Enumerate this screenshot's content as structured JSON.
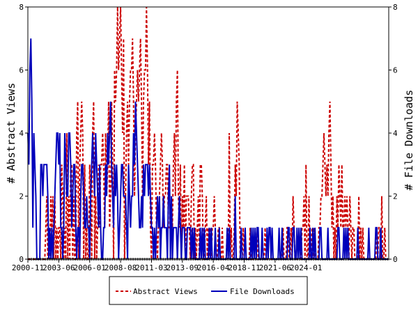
{
  "chart_data": {
    "type": "line",
    "xlabel": "",
    "ylabel_left": "# Abstract Views",
    "ylabel_right": "# File Downloads",
    "ylim": [
      0,
      8
    ],
    "y_ticks": [
      "0",
      "2",
      "4",
      "6",
      "8"
    ],
    "x_tick_labels": [
      "2000-11",
      "2003-06",
      "2006-01",
      "2008-08",
      "2011-03",
      "2013-09",
      "2016-04",
      "2018-11",
      "2021-06",
      "2024-01"
    ],
    "x_start": "2000-11",
    "legend_position": "bottom-center",
    "grid": false,
    "series": [
      {
        "name": "Abstract Views",
        "color": "#cc0000",
        "style": "dashed",
        "axis": "left",
        "values": [
          0,
          0,
          0,
          0,
          0,
          0,
          0,
          0,
          0,
          0,
          0,
          0,
          0,
          0,
          0,
          0,
          0,
          0,
          1,
          2,
          0,
          1,
          0,
          2,
          1,
          2,
          0,
          2,
          0,
          1,
          0,
          1,
          1,
          0,
          3,
          2,
          0,
          1,
          0,
          4,
          0,
          2,
          0,
          3,
          3,
          0,
          2,
          0,
          0,
          4,
          5,
          0,
          3,
          4,
          5,
          4,
          0,
          3,
          0,
          1,
          0,
          0,
          3,
          2,
          0,
          4,
          5,
          0,
          2,
          0,
          1,
          3,
          1,
          3,
          3,
          4,
          3,
          1,
          4,
          2,
          3,
          5,
          1,
          2,
          5,
          3,
          0,
          6,
          5,
          6,
          8,
          6,
          7,
          8,
          6,
          4,
          7,
          0,
          2,
          4,
          5,
          3,
          5,
          6,
          6,
          7,
          5,
          2,
          4,
          5,
          6,
          5,
          6,
          7,
          5,
          2,
          5,
          6,
          6,
          8,
          6,
          3,
          5,
          1,
          0,
          3,
          3,
          4,
          3,
          1,
          0,
          1,
          2,
          3,
          4,
          3,
          1,
          2,
          2,
          3,
          3,
          1,
          1,
          1,
          2,
          1,
          3,
          4,
          2,
          5,
          6,
          2,
          1,
          3,
          0,
          2,
          1,
          3,
          0,
          2,
          2,
          2,
          1,
          0,
          2,
          3,
          3,
          0,
          1,
          0,
          1,
          2,
          0,
          3,
          3,
          2,
          0,
          0,
          1,
          2,
          0,
          1,
          0,
          1,
          0,
          1,
          1,
          2,
          1,
          0,
          0,
          1,
          1,
          0,
          0,
          1,
          0,
          0,
          0,
          0,
          1,
          0,
          4,
          0,
          1,
          0,
          0,
          1,
          3,
          2,
          5,
          4,
          3,
          0,
          0,
          0,
          1,
          0,
          0,
          0,
          0,
          0,
          0,
          1,
          0,
          0,
          0,
          0,
          0,
          0,
          1,
          0,
          0,
          0,
          0,
          0,
          0,
          0,
          1,
          0,
          0,
          0,
          0,
          0,
          0,
          0,
          0,
          0,
          0,
          0,
          0,
          0,
          0,
          0,
          0,
          0,
          1,
          0,
          0,
          0,
          1,
          1,
          0,
          0,
          1,
          0,
          2,
          1,
          0,
          0,
          0,
          0,
          0,
          0,
          0,
          1,
          1,
          2,
          0,
          3,
          0,
          0,
          2,
          0,
          0,
          1,
          0,
          1,
          0,
          0,
          0,
          0,
          1,
          1,
          2,
          2,
          3,
          4,
          3,
          2,
          3,
          2,
          4,
          5,
          3,
          1,
          2,
          0,
          1,
          0,
          2,
          1,
          3,
          2,
          1,
          3,
          1,
          1,
          2,
          1,
          2,
          1,
          0,
          2,
          1,
          0,
          1,
          1,
          0,
          0,
          0,
          0,
          2,
          0,
          1,
          0,
          1,
          0,
          0,
          0,
          0,
          0,
          0,
          0,
          0,
          0,
          0,
          0,
          0,
          0,
          1,
          0,
          1,
          1,
          0,
          2,
          0,
          0,
          1,
          0,
          0,
          0,
          0
        ]
      },
      {
        "name": "File Downloads",
        "color": "#0000bb",
        "style": "solid",
        "axis": "right",
        "values": [
          4,
          3,
          6,
          7,
          5,
          1,
          4,
          3,
          2,
          0,
          0,
          0,
          0,
          3,
          3,
          2,
          3,
          3,
          3,
          3,
          2,
          0,
          1,
          0,
          1,
          0,
          1,
          2,
          3,
          4,
          4,
          3,
          4,
          1,
          1,
          0,
          1,
          4,
          3,
          2,
          2,
          4,
          4,
          3,
          1,
          2,
          3,
          3,
          1,
          0,
          1,
          1,
          0,
          2,
          3,
          3,
          2,
          1,
          1,
          2,
          1,
          1,
          0,
          2,
          3,
          4,
          3,
          2,
          4,
          3,
          2,
          1,
          3,
          1,
          0,
          0,
          1,
          1,
          3,
          2,
          4,
          3,
          4,
          5,
          3,
          2,
          1,
          3,
          2,
          3,
          2,
          0,
          1,
          2,
          3,
          3,
          2,
          2,
          2,
          1,
          0,
          3,
          2,
          1,
          2,
          2,
          4,
          3,
          5,
          4,
          3,
          2,
          1,
          1,
          2,
          1,
          3,
          2,
          3,
          3,
          3,
          2,
          3,
          2,
          1,
          1,
          0,
          1,
          0,
          1,
          2,
          1,
          2,
          0,
          1,
          1,
          2,
          1,
          1,
          1,
          0,
          2,
          3,
          0,
          2,
          0,
          1,
          1,
          1,
          1,
          0,
          1,
          2,
          1,
          0,
          1,
          1,
          1,
          0,
          0,
          1,
          1,
          1,
          1,
          0,
          1,
          0,
          1,
          0,
          0,
          0,
          0,
          0,
          1,
          0,
          1,
          0,
          1,
          0,
          0,
          0,
          0,
          1,
          0,
          1,
          0,
          0,
          0,
          1,
          0,
          0,
          0,
          1,
          0,
          0,
          0,
          0,
          0,
          0,
          0,
          1,
          0,
          1,
          0,
          0,
          0,
          0,
          0,
          2,
          0,
          0,
          0,
          0,
          0,
          1,
          0,
          0,
          0,
          1,
          0,
          0,
          0,
          0,
          0,
          1,
          0,
          1,
          0,
          1,
          0,
          1,
          1,
          0,
          0,
          0,
          1,
          0,
          0,
          0,
          0,
          1,
          0,
          1,
          1,
          0,
          1,
          0,
          0,
          0,
          0,
          0,
          0,
          1,
          0,
          0,
          1,
          0,
          0,
          0,
          0,
          0,
          1,
          1,
          0,
          0,
          0,
          1,
          1,
          0,
          0,
          1,
          0,
          1,
          0,
          1,
          0,
          0,
          0,
          0,
          0,
          0,
          0,
          0,
          1,
          0,
          0,
          1,
          0,
          1,
          0,
          0,
          0,
          0,
          1,
          1,
          0,
          0,
          0,
          0,
          0,
          0,
          1,
          0,
          0,
          0,
          0,
          0,
          0,
          0,
          0,
          0,
          1,
          1,
          0,
          0,
          0,
          0,
          1,
          0,
          1,
          0,
          1,
          0,
          0,
          0,
          0,
          0,
          0,
          0,
          0,
          0,
          1,
          0,
          0,
          0,
          0,
          0,
          0,
          0,
          0,
          0,
          0,
          1,
          0,
          0,
          0,
          0,
          0,
          0,
          1,
          1,
          0,
          0,
          0,
          1,
          0,
          0,
          0,
          0,
          0,
          0,
          0
        ]
      }
    ]
  }
}
